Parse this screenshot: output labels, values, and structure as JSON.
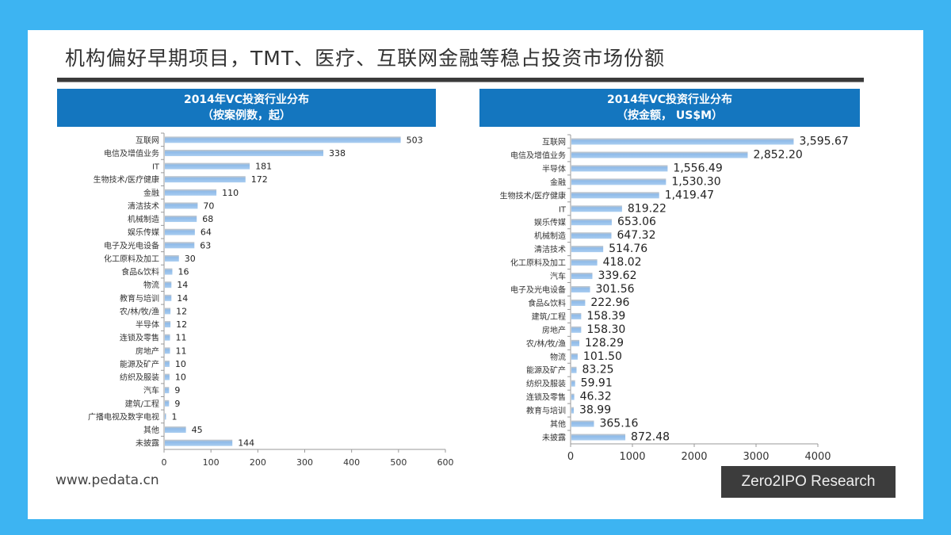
{
  "title": "机构偏好早期项目，TMT、医疗、互联网金融等稳占投资市场份额",
  "footer": "www.pedata.cn",
  "brand": "Zero2IPO Research",
  "chart_data": [
    {
      "type": "bar",
      "orientation": "horizontal",
      "title": "2014年VC投资行业分布",
      "subtitle": "（按案例数，起）",
      "categories": [
        "互联网",
        "电信及增值业务",
        "IT",
        "生物技术/医疗健康",
        "金融",
        "清洁技术",
        "机械制造",
        "娱乐传媒",
        "电子及光电设备",
        "化工原料及加工",
        "食品&饮料",
        "物流",
        "教育与培训",
        "农/林/牧/渔",
        "半导体",
        "连锁及零售",
        "房地产",
        "能源及矿产",
        "纺织及服装",
        "汽车",
        "建筑/工程",
        "广播电视及数字电视",
        "其他",
        "未披露"
      ],
      "values": [
        503,
        338,
        181,
        172,
        110,
        70,
        68,
        64,
        63,
        30,
        16,
        14,
        14,
        12,
        12,
        11,
        11,
        10,
        10,
        9,
        9,
        1,
        45,
        144
      ],
      "labels": [
        "503",
        "338",
        "181",
        "172",
        "110",
        "70",
        "68",
        "64",
        "63",
        "30",
        "16",
        "14",
        "14",
        "12",
        "12",
        "11",
        "11",
        "10",
        "10",
        "9",
        "9",
        "1",
        "45",
        "144"
      ],
      "xlim": [
        0,
        600
      ],
      "ticks": [
        "0",
        "100",
        "200",
        "300",
        "400",
        "500",
        "600"
      ],
      "tick_values": [
        0,
        100,
        200,
        300,
        400,
        500,
        600
      ]
    },
    {
      "type": "bar",
      "orientation": "horizontal",
      "title": "2014年VC投资行业分布",
      "subtitle": "（按金额， US$M）",
      "categories": [
        "互联网",
        "电信及增值业务",
        "半导体",
        "金融",
        "生物技术/医疗健康",
        "IT",
        "娱乐传媒",
        "机械制造",
        "清洁技术",
        "化工原料及加工",
        "汽车",
        "电子及光电设备",
        "食品&饮料",
        "建筑/工程",
        "房地产",
        "农/林/牧/渔",
        "物流",
        "能源及矿产",
        "纺织及服装",
        "连锁及零售",
        "教育与培训",
        "其他",
        "未披露"
      ],
      "values": [
        3595.67,
        2852.2,
        1556.49,
        1530.3,
        1419.47,
        819.22,
        653.06,
        647.32,
        514.76,
        418.02,
        339.62,
        301.56,
        222.96,
        158.39,
        158.3,
        128.29,
        101.5,
        83.25,
        59.91,
        46.32,
        38.99,
        365.16,
        872.48
      ],
      "labels": [
        "3,595.67",
        "2,852.20",
        "1,556.49",
        "1,530.30",
        "1,419.47",
        "819.22",
        "653.06",
        "647.32",
        "514.76",
        "418.02",
        "339.62",
        "301.56",
        "222.96",
        "158.39",
        "158.30",
        "128.29",
        "101.50",
        "83.25",
        "59.91",
        "46.32",
        "38.99",
        "365.16",
        "872.48"
      ],
      "xlim": [
        0,
        4000
      ],
      "ticks": [
        "0",
        "1000",
        "2000",
        "3000",
        "4000"
      ],
      "tick_values": [
        0,
        1000,
        2000,
        3000,
        4000
      ]
    }
  ]
}
